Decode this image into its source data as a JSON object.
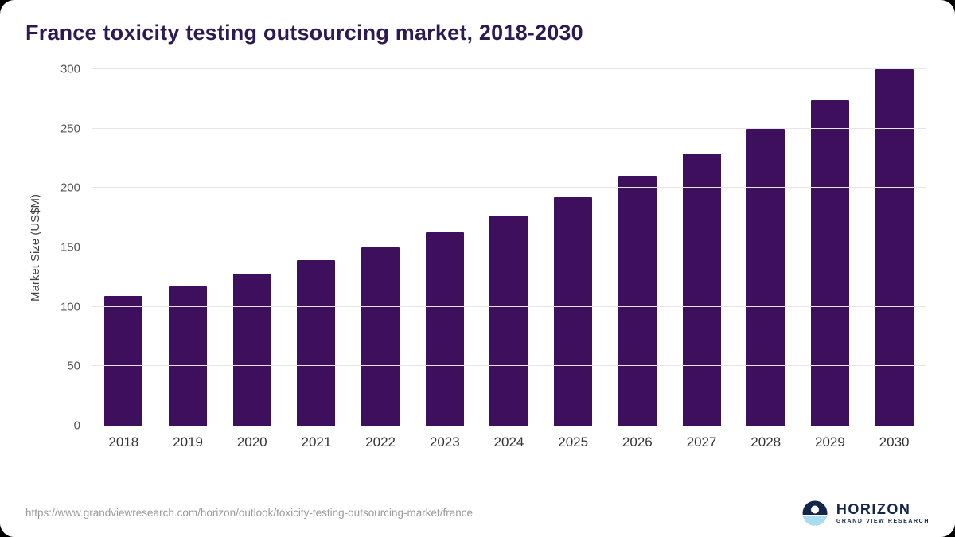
{
  "title": "France toxicity testing outsourcing market, 2018-2030",
  "chart_data": {
    "type": "bar",
    "categories": [
      "2018",
      "2019",
      "2020",
      "2021",
      "2022",
      "2023",
      "2024",
      "2025",
      "2026",
      "2027",
      "2028",
      "2029",
      "2030"
    ],
    "values": [
      109,
      117,
      128,
      139,
      150,
      163,
      177,
      192,
      210,
      229,
      250,
      274,
      301
    ],
    "title": "France toxicity testing outsourcing market, 2018-2030",
    "xlabel": "",
    "ylabel": "Market Size (US$M)",
    "ylim": [
      0,
      300
    ],
    "yticks": [
      0,
      50,
      100,
      150,
      200,
      250,
      300
    ],
    "grid": "horizontal",
    "legend": "none"
  },
  "footer": {
    "source_url": "https://www.grandviewresearch.com/horizon/outlook/toxicity-testing-outsourcing-market/france"
  },
  "logo": {
    "brand": "HORIZON",
    "tagline": "GRAND VIEW RESEARCH"
  },
  "colors": {
    "bar": "#3e0f5d",
    "title": "#2e1a52",
    "grid": "#e6e6e6",
    "axis": "#c4c4c4",
    "tick_text": "#555555",
    "url_text": "#9a9a9a",
    "brand_navy": "#12264a",
    "logo_lightblue": "#a8ddf0"
  }
}
